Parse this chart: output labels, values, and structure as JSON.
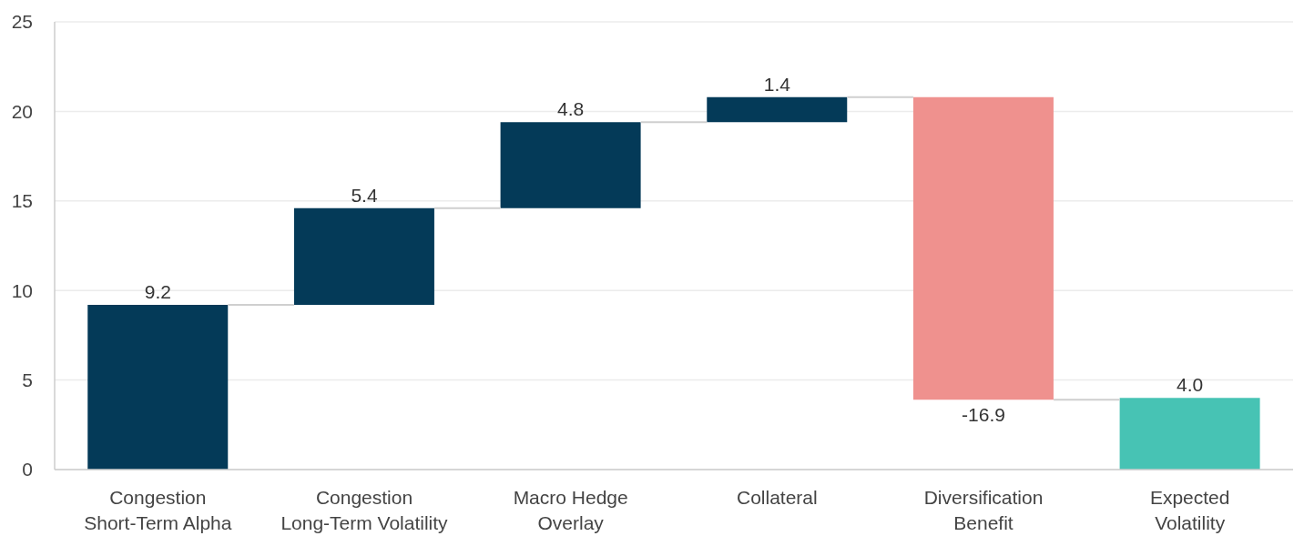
{
  "chart_data": {
    "type": "bar",
    "categories": [
      "Congestion\nShort-Term Alpha",
      "Congestion\nLong-Term Volatility",
      "Macro Hedge\nOverlay",
      "Collateral",
      "Diversification\nBenefit",
      "Expected\nVolatility"
    ],
    "values": [
      9.2,
      5.4,
      4.8,
      1.4,
      -16.9,
      4.0
    ],
    "base": [
      0,
      9.2,
      14.6,
      19.4,
      20.8,
      0
    ],
    "colors": [
      "#043a58",
      "#043a58",
      "#043a58",
      "#043a58",
      "#ef918e",
      "#47c3b4"
    ],
    "value_labels": [
      "9.2",
      "5.4",
      "4.8",
      "1.4",
      "-16.9",
      "4.0"
    ],
    "ylim": [
      0,
      25
    ],
    "yticks": [
      0,
      5,
      10,
      15,
      20,
      25
    ],
    "grid": "y"
  }
}
